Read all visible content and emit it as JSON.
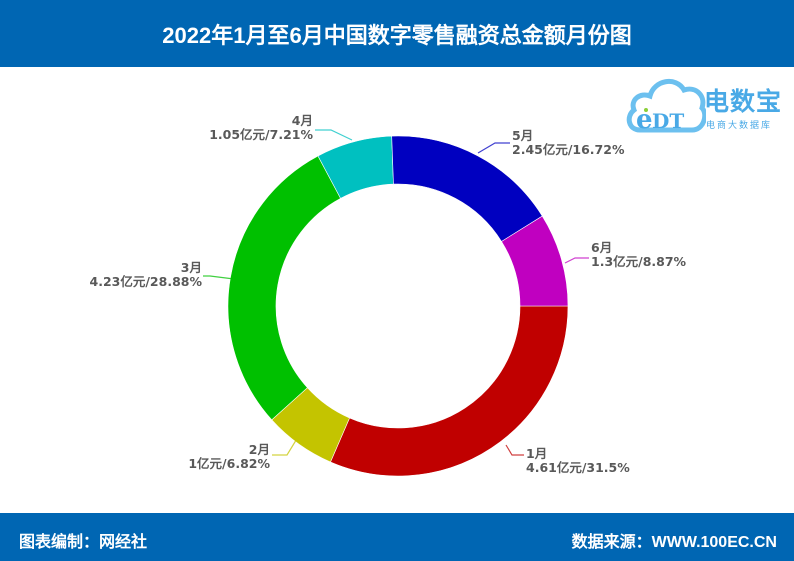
{
  "header": {
    "title": "2022年1月至6月中国数字零售融资总金额月份图"
  },
  "logo": {
    "mark": "eDT",
    "brand": "电数宝",
    "subtitle": "电商大数据库"
  },
  "footer": {
    "left": "图表编制：网经社",
    "right": "数据来源：WWW.100EC.CN"
  },
  "colors": {
    "header_bg": "#0066b3",
    "label_text": "#595959"
  },
  "chart_data": {
    "type": "pie",
    "variant": "donut",
    "title": "2022年1月至6月中国数字零售融资总金额月份图",
    "unit": "亿元",
    "start_angle_deg": 0,
    "direction": "clockwise",
    "center": [
      398,
      306
    ],
    "outer_radius": 170,
    "inner_radius": 122,
    "slices": [
      {
        "label": "1月",
        "value": 4.61,
        "percent": 31.5,
        "value_text": "4.61亿元/31.5%",
        "color": "#c00000"
      },
      {
        "label": "2月",
        "value": 1.0,
        "percent": 6.82,
        "value_text": "1亿元/6.82%",
        "color": "#c4c400"
      },
      {
        "label": "3月",
        "value": 4.23,
        "percent": 28.88,
        "value_text": "4.23亿元/28.88%",
        "color": "#00c000"
      },
      {
        "label": "4月",
        "value": 1.05,
        "percent": 7.21,
        "value_text": "1.05亿元/7.21%",
        "color": "#00c0c0"
      },
      {
        "label": "5月",
        "value": 2.45,
        "percent": 16.72,
        "value_text": "2.45亿元/16.72%",
        "color": "#0000c0"
      },
      {
        "label": "6月",
        "value": 1.3,
        "percent": 8.87,
        "value_text": "1.3亿元/8.87%",
        "color": "#c000c0"
      }
    ],
    "legend": "none",
    "labels_position": "outside-with-leader-lines"
  }
}
